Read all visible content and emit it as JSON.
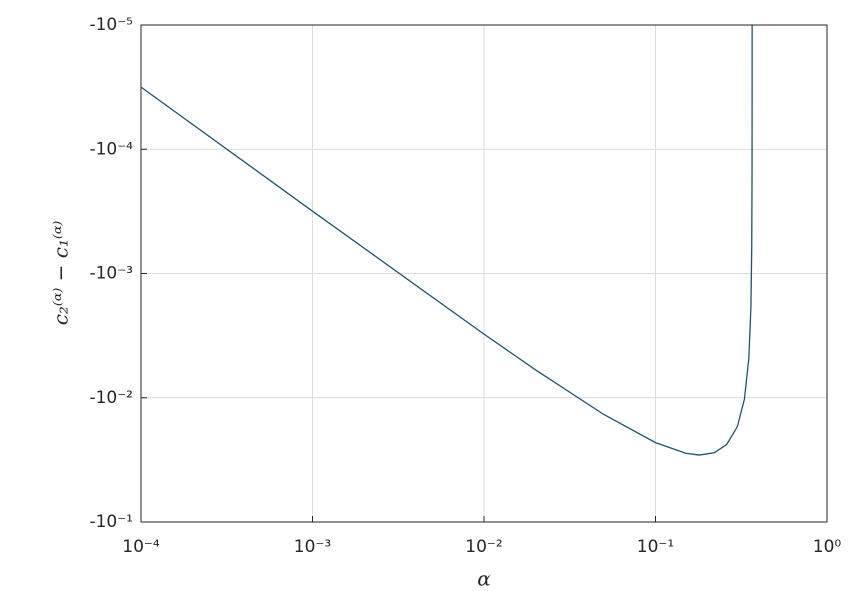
{
  "chart_data": {
    "type": "line",
    "xlabel": "α",
    "ylabel": "c₂⁽ᵅ⁾ − c₁⁽ᵅ⁾",
    "x": [
      0.0001,
      0.001,
      0.01,
      0.02,
      0.05,
      0.1,
      0.15,
      0.18,
      0.22,
      0.26,
      0.3,
      0.33,
      0.35,
      0.36,
      0.364,
      0.3655,
      0.3659,
      0.36597
    ],
    "series": [
      {
        "color": "#1a5470",
        "values": [
          -3.16e-05,
          -0.000315,
          -0.003074,
          -0.005975,
          -0.01364,
          -0.02297,
          -0.02798,
          -0.02891,
          -0.02773,
          -0.02379,
          -0.01709,
          -0.01026,
          -0.004835,
          -0.001865,
          -0.0006285,
          -0.0001578,
          -3.16e-05,
          -9.48e-06
        ]
      }
    ],
    "xlim": [
      0.0001,
      1
    ],
    "ylim": [
      -0.1,
      -1e-05
    ],
    "xscale": "log",
    "yscale": "log",
    "xticks": [
      {
        "value": 0.0001,
        "label": "10⁻⁴"
      },
      {
        "value": 0.001,
        "label": "10⁻³"
      },
      {
        "value": 0.01,
        "label": "10⁻²"
      },
      {
        "value": 0.1,
        "label": "10⁻¹"
      },
      {
        "value": 1,
        "label": "10⁰"
      }
    ],
    "yticks": [
      {
        "value": -0.1,
        "label": "-10⁻¹"
      },
      {
        "value": -0.01,
        "label": "-10⁻²"
      },
      {
        "value": -0.001,
        "label": "-10⁻³"
      },
      {
        "value": -0.0001,
        "label": "-10⁻⁴"
      },
      {
        "value": -1e-05,
        "label": "-10⁻⁵"
      }
    ],
    "grid": true
  }
}
